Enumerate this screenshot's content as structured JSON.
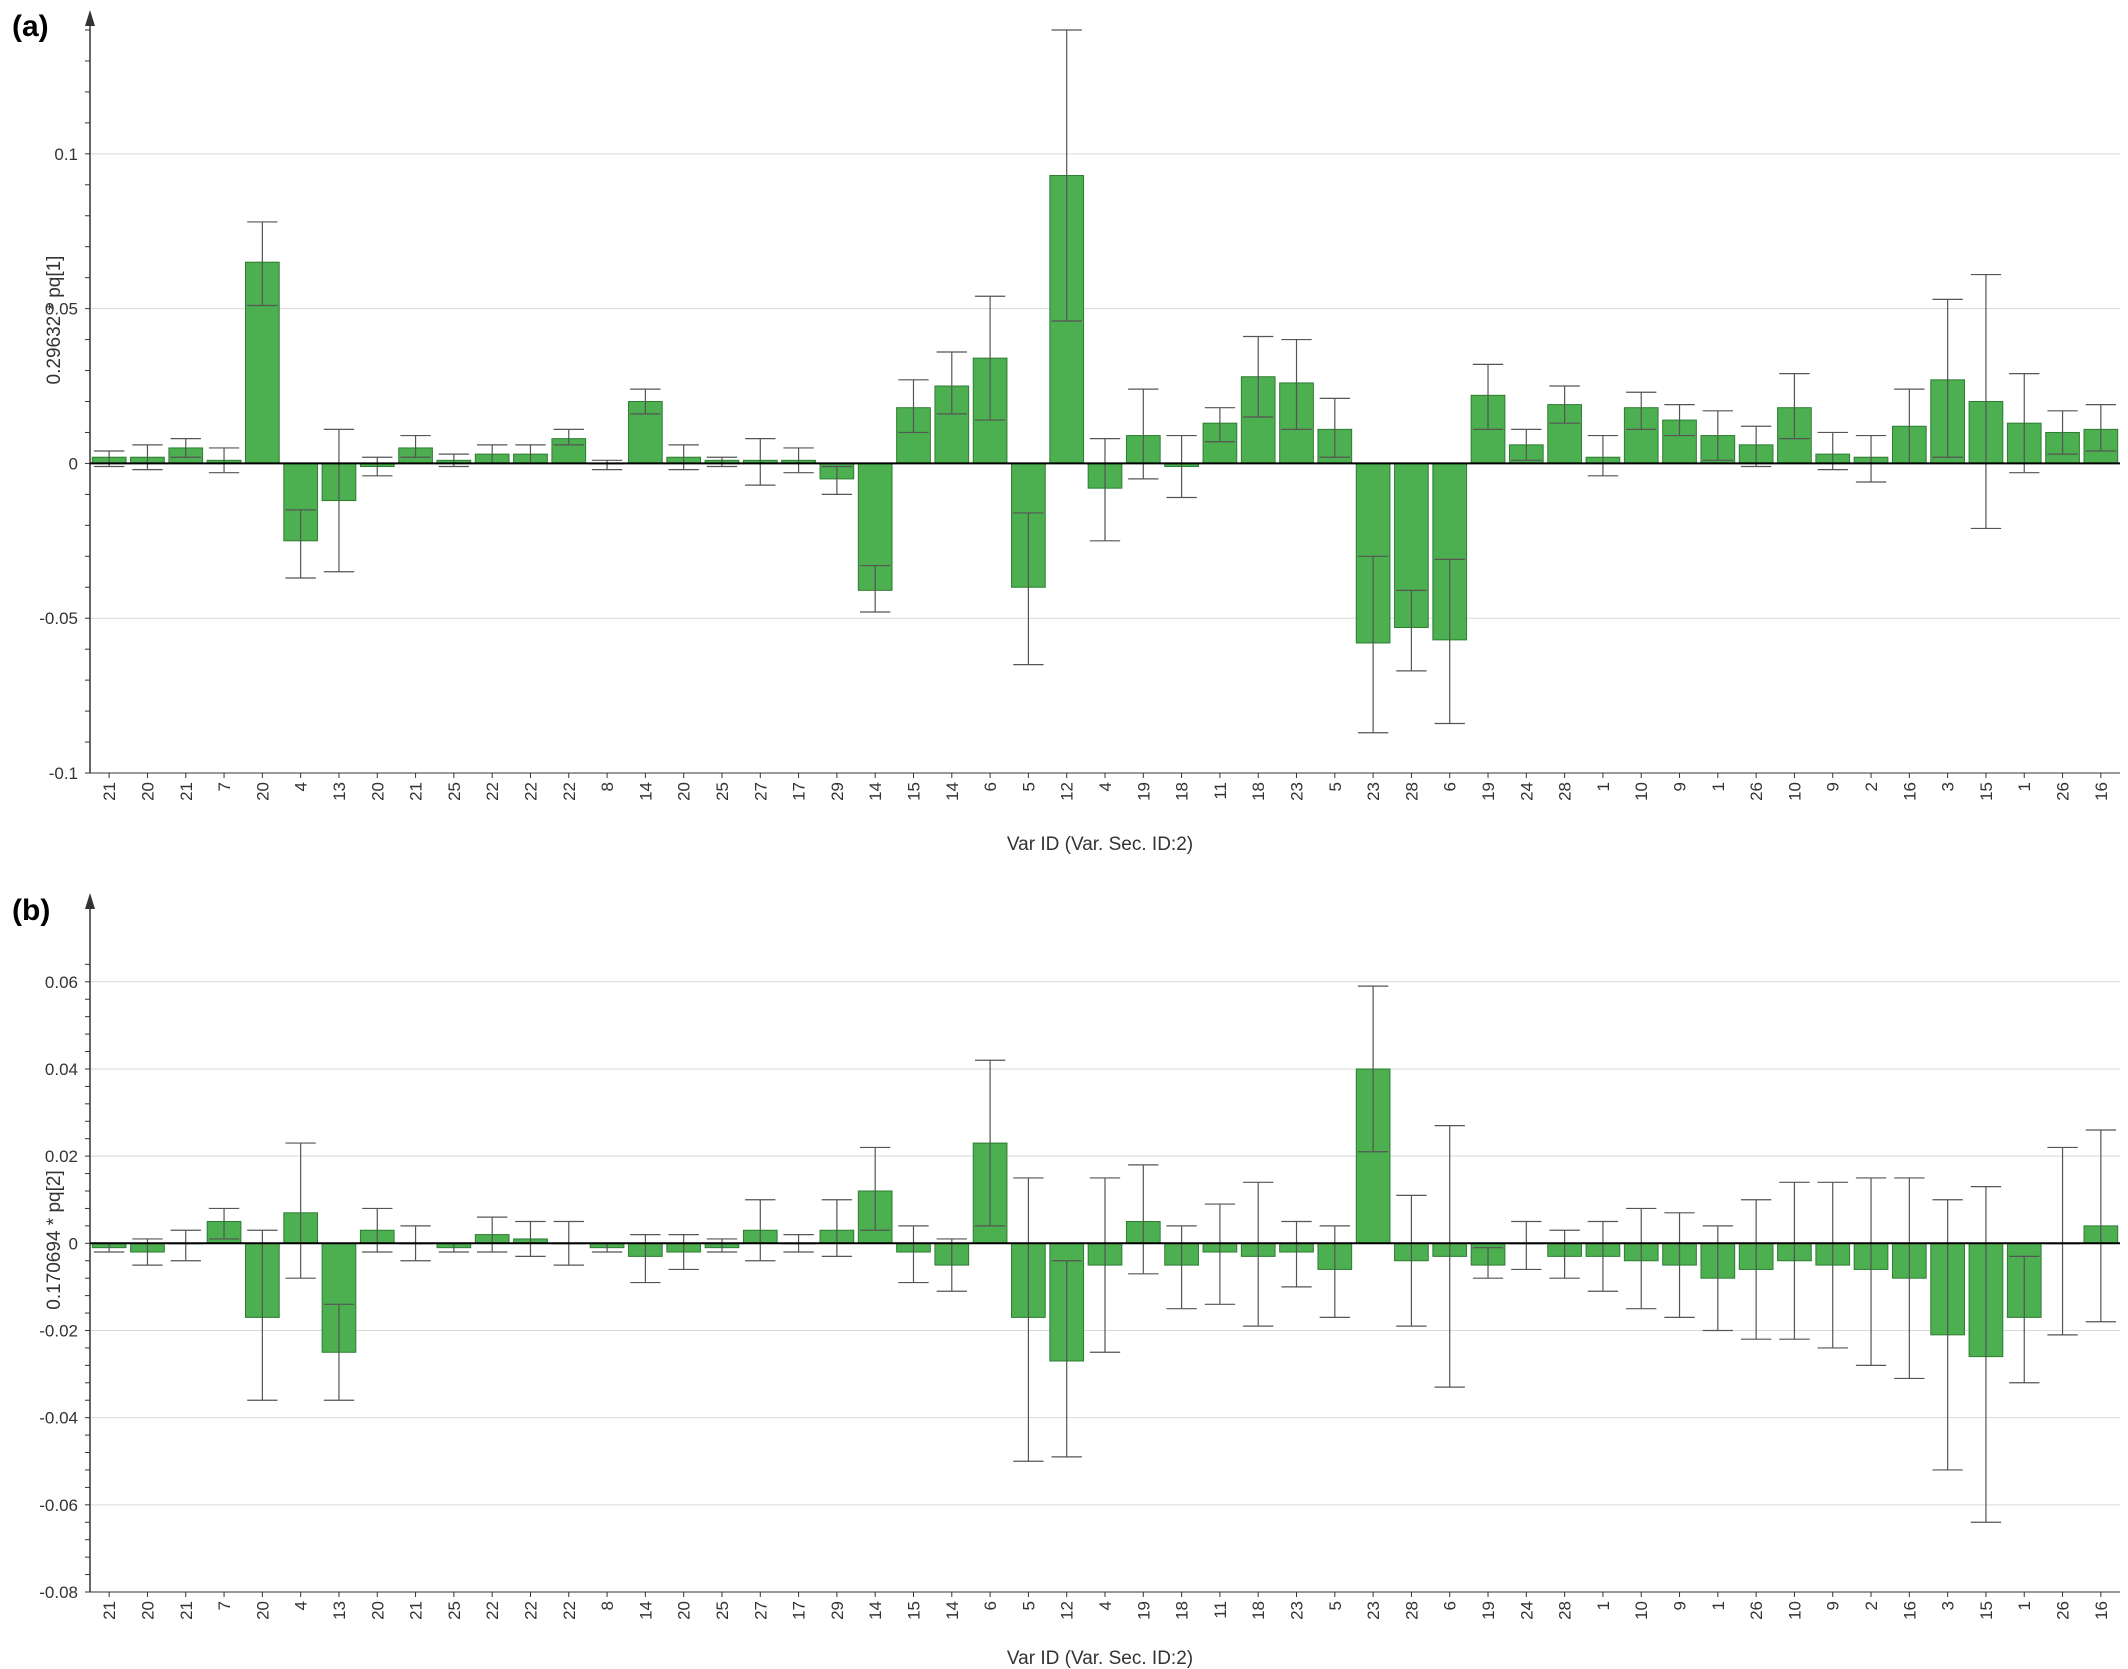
{
  "chart_data": [
    {
      "type": "bar",
      "panel_label": "(a)",
      "ylabel": "0.29632 * pq[1]",
      "xlabel": "Var ID (Var. Sec. ID:2)",
      "ylim": [
        -0.1,
        0.14
      ],
      "yticks": [
        -0.1,
        -0.05,
        0,
        0.05,
        0.1
      ],
      "ytick_labels": [
        "-0.1",
        "-0.05",
        "0",
        "0.05",
        "0.1"
      ],
      "grid": true,
      "bar_color": "#4caf50",
      "bar_edge_color": "#2e7d32",
      "errorbar_color": "#555555",
      "categories": [
        "21",
        "20",
        "21",
        "7",
        "20",
        "4",
        "13",
        "20",
        "21",
        "25",
        "22",
        "22",
        "22",
        "8",
        "14",
        "20",
        "25",
        "27",
        "17",
        "29",
        "14",
        "15",
        "14",
        "6",
        "5",
        "12",
        "4",
        "19",
        "18",
        "11",
        "18",
        "23",
        "5",
        "23",
        "28",
        "6",
        "19",
        "24",
        "28",
        "1",
        "10",
        "9",
        "1",
        "26",
        "10",
        "9",
        "2",
        "16",
        "3",
        "15",
        "1",
        "26",
        "16"
      ],
      "values": [
        0.002,
        0.002,
        0.005,
        0.001,
        0.065,
        -0.025,
        -0.012,
        -0.001,
        0.005,
        0.001,
        0.003,
        0.003,
        0.008,
        0.0,
        0.02,
        0.002,
        0.001,
        0.001,
        0.001,
        -0.005,
        -0.041,
        0.018,
        0.025,
        0.034,
        -0.04,
        0.093,
        -0.008,
        0.009,
        -0.001,
        0.013,
        0.028,
        0.026,
        0.011,
        -0.058,
        -0.053,
        -0.057,
        0.022,
        0.006,
        0.019,
        0.002,
        0.018,
        0.014,
        0.009,
        0.006,
        0.018,
        0.003,
        0.002,
        0.012,
        0.027,
        0.02,
        0.013,
        0.01,
        0.011
      ],
      "error_low": [
        -0.001,
        -0.002,
        0.002,
        -0.003,
        0.051,
        -0.037,
        -0.035,
        -0.004,
        0.002,
        -0.001,
        0.0,
        0.0,
        0.006,
        -0.002,
        0.016,
        -0.002,
        -0.001,
        -0.007,
        -0.003,
        -0.01,
        -0.048,
        0.01,
        0.016,
        0.014,
        -0.065,
        0.046,
        -0.025,
        -0.005,
        -0.011,
        0.007,
        0.015,
        0.011,
        0.002,
        -0.087,
        -0.067,
        -0.084,
        0.011,
        0.001,
        0.013,
        -0.004,
        0.011,
        0.009,
        0.001,
        -0.001,
        0.008,
        -0.002,
        -0.006,
        0.0,
        0.002,
        -0.021,
        -0.003,
        0.003,
        0.004
      ],
      "error_high": [
        0.004,
        0.006,
        0.008,
        0.005,
        0.078,
        -0.015,
        0.011,
        0.002,
        0.009,
        0.003,
        0.006,
        0.006,
        0.011,
        0.001,
        0.024,
        0.006,
        0.002,
        0.008,
        0.005,
        -0.001,
        -0.033,
        0.027,
        0.036,
        0.054,
        -0.016,
        0.14,
        0.008,
        0.024,
        0.009,
        0.018,
        0.041,
        0.04,
        0.021,
        -0.03,
        -0.041,
        -0.031,
        0.032,
        0.011,
        0.025,
        0.009,
        0.023,
        0.019,
        0.017,
        0.012,
        0.029,
        0.01,
        0.009,
        0.024,
        0.053,
        0.061,
        0.029,
        0.017,
        0.019
      ]
    },
    {
      "type": "bar",
      "panel_label": "(b)",
      "ylabel": "0.170694 * pq[2]",
      "xlabel": "Var ID (Var. Sec. ID:2)",
      "ylim": [
        -0.08,
        0.065
      ],
      "yticks": [
        -0.08,
        -0.06,
        -0.04,
        -0.02,
        0,
        0.02,
        0.04,
        0.06
      ],
      "ytick_labels": [
        "-0.08",
        "-0.06",
        "-0.04",
        "-0.02",
        "0",
        "0.02",
        "0.04",
        "0.06"
      ],
      "grid": true,
      "bar_color": "#4caf50",
      "bar_edge_color": "#2e7d32",
      "errorbar_color": "#555555",
      "categories": [
        "21",
        "20",
        "21",
        "7",
        "20",
        "4",
        "13",
        "20",
        "21",
        "25",
        "22",
        "22",
        "22",
        "8",
        "14",
        "20",
        "25",
        "27",
        "17",
        "29",
        "14",
        "15",
        "14",
        "6",
        "5",
        "12",
        "4",
        "19",
        "18",
        "11",
        "18",
        "23",
        "5",
        "23",
        "28",
        "6",
        "19",
        "24",
        "28",
        "1",
        "10",
        "9",
        "1",
        "26",
        "10",
        "9",
        "2",
        "16",
        "3",
        "15",
        "1",
        "26",
        "16"
      ],
      "values": [
        -0.001,
        -0.002,
        0.0,
        0.005,
        -0.017,
        0.007,
        -0.025,
        0.003,
        0.0,
        -0.001,
        0.002,
        0.001,
        0.0,
        -0.001,
        -0.003,
        -0.002,
        -0.001,
        0.003,
        0.0,
        0.003,
        0.012,
        -0.002,
        -0.005,
        0.023,
        -0.017,
        -0.027,
        -0.005,
        0.005,
        -0.005,
        -0.002,
        -0.003,
        -0.002,
        -0.006,
        0.04,
        -0.004,
        -0.003,
        -0.005,
        0.0,
        -0.003,
        -0.003,
        -0.004,
        -0.005,
        -0.008,
        -0.006,
        -0.004,
        -0.005,
        -0.006,
        -0.008,
        -0.021,
        -0.026,
        -0.017,
        0.0,
        0.004
      ],
      "error_low": [
        -0.002,
        -0.005,
        -0.004,
        0.001,
        -0.036,
        -0.008,
        -0.036,
        -0.002,
        -0.004,
        -0.002,
        -0.002,
        -0.003,
        -0.005,
        -0.002,
        -0.009,
        -0.006,
        -0.002,
        -0.004,
        -0.002,
        -0.003,
        0.003,
        -0.009,
        -0.011,
        0.004,
        -0.05,
        -0.049,
        -0.025,
        -0.007,
        -0.015,
        -0.014,
        -0.019,
        -0.01,
        -0.017,
        0.021,
        -0.019,
        -0.033,
        -0.008,
        -0.006,
        -0.008,
        -0.011,
        -0.015,
        -0.017,
        -0.02,
        -0.022,
        -0.022,
        -0.024,
        -0.028,
        -0.031,
        -0.052,
        -0.064,
        -0.032,
        -0.021,
        -0.018
      ],
      "error_high": [
        0.0,
        0.001,
        0.003,
        0.008,
        0.003,
        0.023,
        -0.014,
        0.008,
        0.004,
        0.0,
        0.006,
        0.005,
        0.005,
        0.0,
        0.002,
        0.002,
        0.001,
        0.01,
        0.002,
        0.01,
        0.022,
        0.004,
        0.001,
        0.042,
        0.015,
        -0.004,
        0.015,
        0.018,
        0.004,
        0.009,
        0.014,
        0.005,
        0.004,
        0.059,
        0.011,
        0.027,
        -0.001,
        0.005,
        0.003,
        0.005,
        0.008,
        0.007,
        0.004,
        0.01,
        0.014,
        0.014,
        0.015,
        0.015,
        0.01,
        0.013,
        -0.003,
        0.022,
        0.026
      ]
    }
  ]
}
